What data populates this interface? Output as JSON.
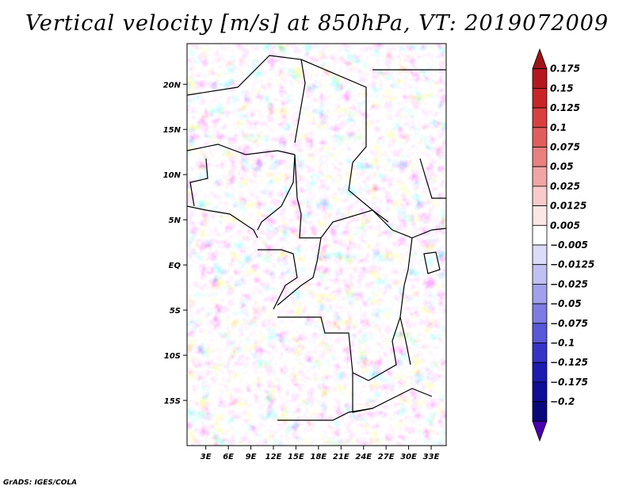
{
  "title": "Vertical velocity [m/s] at 850hPa, VT: 2019072009",
  "credit": "GrADS: IGES/COLA",
  "map": {
    "lat_labels": [
      "20N",
      "15N",
      "10N",
      "5N",
      "EQ",
      "5S",
      "10S",
      "15S"
    ],
    "lat_values": [
      20,
      15,
      10,
      5,
      0,
      -5,
      -10,
      -15
    ],
    "lon_labels": [
      "3E",
      "6E",
      "9E",
      "12E",
      "15E",
      "18E",
      "21E",
      "24E",
      "27E",
      "30E",
      "33E"
    ],
    "lon_values": [
      3,
      6,
      9,
      12,
      15,
      18,
      21,
      24,
      27,
      30,
      33
    ],
    "lon_range": [
      0.5,
      35
    ],
    "lat_range": [
      -20,
      24.5
    ],
    "colors": {
      "positive": "#d93a3a",
      "negative": "#4a4ae0",
      "border": "#000000"
    }
  },
  "colorbar": {
    "labels": [
      "0.175",
      "0.15",
      "0.125",
      "0.1",
      "0.075",
      "0.05",
      "0.025",
      "0.0125",
      "0.005",
      "−0.005",
      "−0.0125",
      "−0.025",
      "−0.05",
      "−0.075",
      "−0.1",
      "−0.125",
      "−0.175",
      "−0.2"
    ],
    "colors": [
      "#a01418",
      "#b4181e",
      "#c82428",
      "#d84040",
      "#e25e5e",
      "#ea8080",
      "#f2a4a4",
      "#f8caca",
      "#fce6e6",
      "#ffffff",
      "#dcdcf8",
      "#c0c0f2",
      "#a0a0ec",
      "#7c7ce4",
      "#5858d8",
      "#3434c8",
      "#1c1cb0",
      "#0e0e96",
      "#08087c",
      "#4a00b0"
    ]
  }
}
